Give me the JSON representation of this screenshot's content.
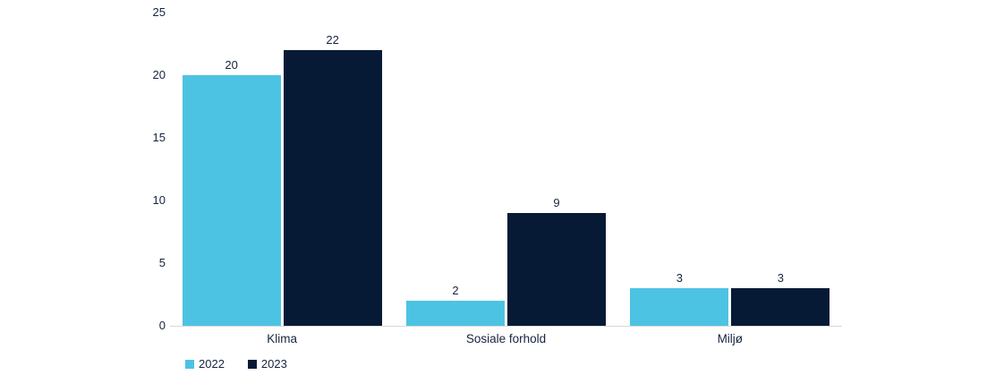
{
  "chart_data": {
    "type": "bar",
    "title": "",
    "xlabel": "",
    "ylabel": "",
    "categories": [
      "Klima",
      "Sosiale forhold",
      "Miljø"
    ],
    "series": [
      {
        "name": "2022",
        "color": "#4DC3E3",
        "values": [
          20,
          2,
          3
        ]
      },
      {
        "name": "2023",
        "color": "#061A36",
        "values": [
          22,
          9,
          3
        ]
      }
    ],
    "ylim": [
      0,
      25
    ],
    "yticks": [
      0,
      5,
      10,
      15,
      20,
      25
    ],
    "grid": false,
    "value_labels": true,
    "legend_position": "bottom-left"
  },
  "colors": {
    "background": "#FFFFFF",
    "text": "#16233F",
    "axis_line": "#D9D9D9",
    "series_2022": "#4DC3E3",
    "series_2023": "#061A36"
  }
}
